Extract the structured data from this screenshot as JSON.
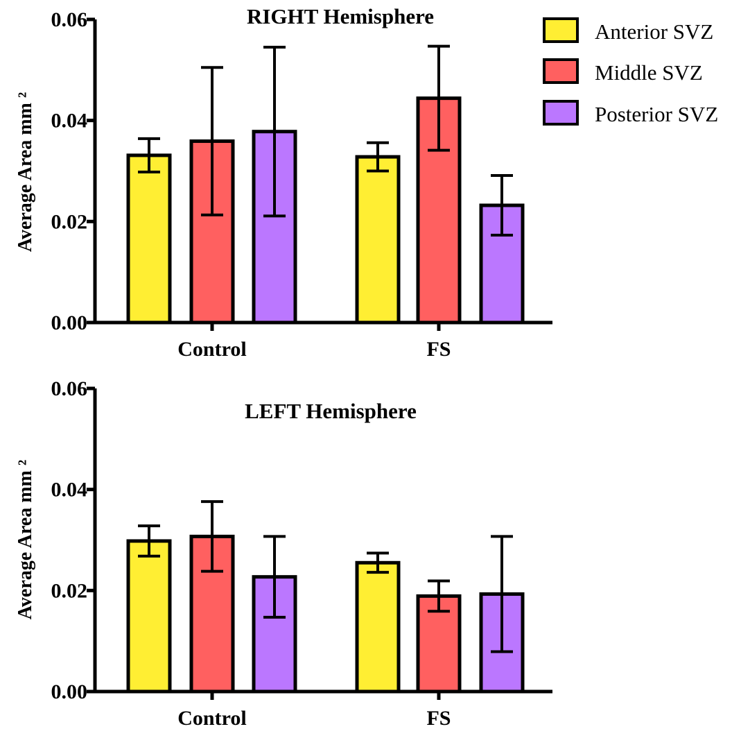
{
  "legend": [
    {
      "name": "Anterior SVZ",
      "color": "#FFEE33"
    },
    {
      "name": "Middle SVZ",
      "color": "#FF6060"
    },
    {
      "name": "Posterior SVZ",
      "color": "#BB77FF"
    }
  ],
  "chart_data": [
    {
      "type": "bar",
      "title": "RIGHT Hemisphere",
      "ylabel": "Average Area mm ²",
      "ylim": [
        0,
        0.06
      ],
      "yticks": [
        "0.00",
        "0.02",
        "0.04",
        "0.06"
      ],
      "categories": [
        "Control",
        "FS"
      ],
      "series": [
        {
          "name": "Anterior SVZ",
          "color": "#FFEE33",
          "values": [
            0.0331,
            0.0328
          ],
          "errors": [
            0.0033,
            0.0028
          ]
        },
        {
          "name": "Middle SVZ",
          "color": "#FF6060",
          "values": [
            0.0359,
            0.0444
          ],
          "errors": [
            0.0146,
            0.0103
          ]
        },
        {
          "name": "Posterior SVZ",
          "color": "#BB77FF",
          "values": [
            0.0378,
            0.0232
          ],
          "errors": [
            0.0167,
            0.0059
          ]
        }
      ],
      "legend_position": "right"
    },
    {
      "type": "bar",
      "title": "LEFT Hemisphere",
      "ylabel": "Average Area mm ²",
      "ylim": [
        0,
        0.06
      ],
      "yticks": [
        "0.00",
        "0.02",
        "0.04",
        "0.06"
      ],
      "categories": [
        "Control",
        "FS"
      ],
      "series": [
        {
          "name": "Anterior SVZ",
          "color": "#FFEE33",
          "values": [
            0.0298,
            0.0255
          ],
          "errors": [
            0.003,
            0.0019
          ]
        },
        {
          "name": "Middle SVZ",
          "color": "#FF6060",
          "values": [
            0.0307,
            0.0189
          ],
          "errors": [
            0.0069,
            0.003
          ]
        },
        {
          "name": "Posterior SVZ",
          "color": "#BB77FF",
          "values": [
            0.0227,
            0.0193
          ],
          "errors": [
            0.008,
            0.0114
          ]
        }
      ]
    }
  ]
}
